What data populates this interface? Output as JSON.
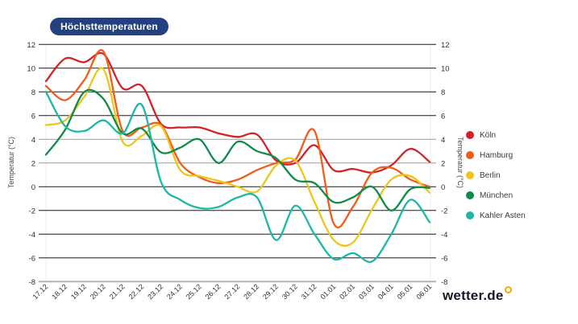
{
  "title_badge": {
    "label": "Höchsttemperaturen",
    "background": "#24417f",
    "text_color": "#ffffff"
  },
  "logo": {
    "text": "wetter.de",
    "degree_mark_color": "#f2a900"
  },
  "axes": {
    "y_label_left": "Temperatur (°C)",
    "y_label_right": "Temperatur (°C)",
    "y_ticks": [
      12,
      10,
      8,
      6,
      4,
      2,
      0,
      -2,
      -4,
      -6,
      -8
    ]
  },
  "chart_data": {
    "type": "line",
    "title": "Höchsttemperaturen",
    "xlabel": "",
    "ylabel": "Temperatur (°C)",
    "ylim": [
      -8,
      12
    ],
    "grid": true,
    "legend_position": "right",
    "x_tick_rotation": -45,
    "categories": [
      "17.12",
      "18.12",
      "19.12",
      "20.12",
      "21.12",
      "22.12",
      "23.12",
      "24.12",
      "25.12",
      "26.12",
      "27.12",
      "28.12",
      "29.12",
      "30.12",
      "31.12",
      "01.01",
      "02.01",
      "03.01",
      "04.01",
      "05.01",
      "06.01"
    ],
    "series": [
      {
        "name": "Köln",
        "slug": "koeln",
        "color": "#d2232a",
        "values": [
          8.9,
          10.8,
          10.5,
          11.2,
          8.3,
          8.5,
          5.3,
          5.0,
          5.0,
          4.5,
          4.2,
          4.4,
          2.2,
          2.0,
          3.5,
          1.4,
          1.5,
          1.2,
          1.8,
          3.2,
          2.1
        ]
      },
      {
        "name": "Hamburg",
        "slug": "hamburg",
        "color": "#f25c19",
        "values": [
          8.5,
          7.3,
          9.0,
          11.4,
          4.7,
          5.0,
          5.2,
          2.0,
          0.8,
          0.3,
          0.6,
          1.4,
          2.0,
          2.3,
          4.7,
          -3.1,
          -1.7,
          1.2,
          1.6,
          0.6,
          0.0
        ]
      },
      {
        "name": "Berlin",
        "slug": "berlin",
        "color": "#eec51d",
        "values": [
          5.2,
          5.6,
          7.6,
          9.9,
          3.8,
          4.3,
          5.1,
          1.4,
          0.9,
          0.5,
          0.0,
          -0.4,
          1.8,
          2.2,
          -1.3,
          -4.5,
          -4.7,
          -1.9,
          0.6,
          0.9,
          -0.5
        ]
      },
      {
        "name": "München",
        "slug": "muenchen",
        "color": "#0f8a4b",
        "values": [
          2.7,
          4.8,
          8.0,
          7.4,
          4.5,
          4.9,
          2.9,
          3.3,
          4.0,
          2.0,
          3.8,
          3.0,
          2.4,
          0.6,
          0.3,
          -1.3,
          -0.9,
          0.0,
          -2.0,
          -0.2,
          -0.1
        ]
      },
      {
        "name": "Kahler Asten",
        "slug": "kahler-asten",
        "color": "#1cb7a7",
        "values": [
          8.0,
          5.1,
          4.7,
          5.6,
          4.5,
          6.9,
          0.4,
          -1.1,
          -1.8,
          -1.7,
          -0.9,
          -0.9,
          -4.5,
          -1.6,
          -4.0,
          -6.1,
          -5.6,
          -6.3,
          -4.0,
          -1.1,
          -3.0
        ]
      }
    ]
  }
}
